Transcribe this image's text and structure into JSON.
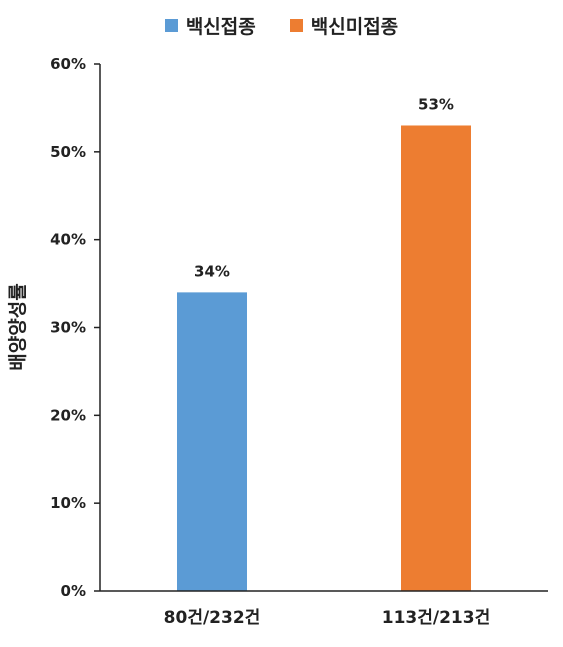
{
  "chart_data": {
    "type": "bar",
    "categories": [
      "80건/232건",
      "113건/213건"
    ],
    "values": [
      34,
      53
    ],
    "data_labels": [
      "34%",
      "53%"
    ],
    "series": [
      {
        "name": "백신접종",
        "color": "#5b9bd5"
      },
      {
        "name": "백신미접종",
        "color": "#ed7d31"
      }
    ],
    "ylabel": "배양양성률",
    "ylim": [
      0,
      60
    ],
    "yticks": [
      "0%",
      "10%",
      "20%",
      "30%",
      "40%",
      "50%",
      "60%"
    ],
    "grid": false,
    "legend_position": "top"
  }
}
